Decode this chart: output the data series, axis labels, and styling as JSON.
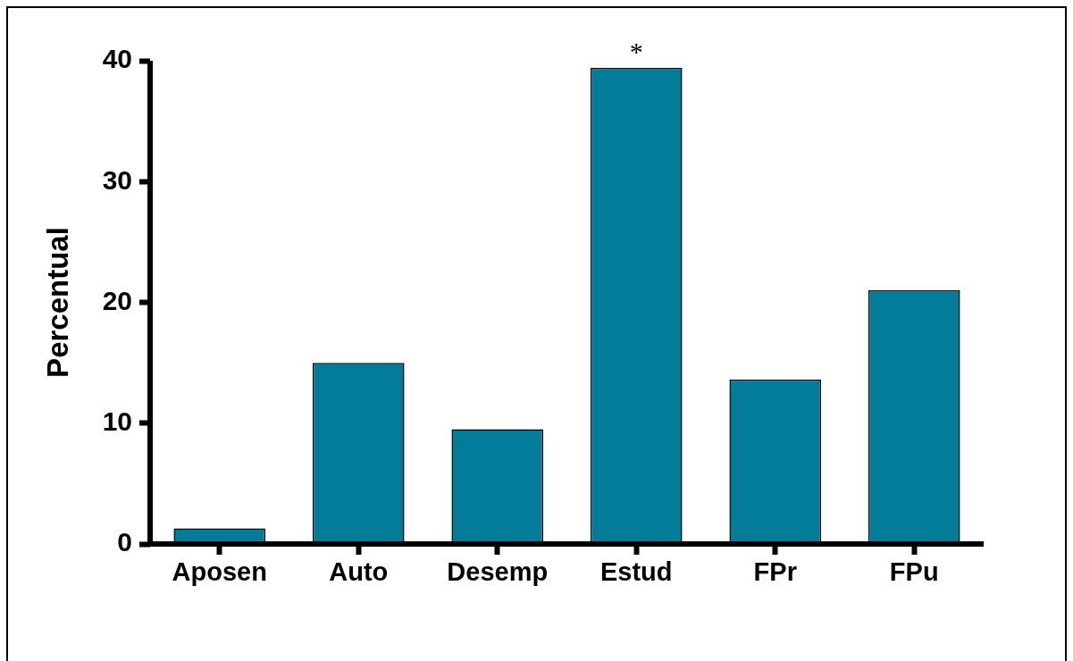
{
  "chart_data": {
    "type": "bar",
    "ylabel": "Percentual",
    "categories": [
      "Aposen",
      "Auto",
      "Desemp",
      "Estud",
      "FPr",
      "FPu"
    ],
    "values": [
      1.3,
      15.0,
      9.5,
      39.4,
      13.6,
      21.0
    ],
    "color": "#027c99",
    "ylim": [
      0,
      40
    ],
    "yticks": [
      0,
      10,
      20,
      30,
      40
    ],
    "annotations": [
      {
        "text": "*",
        "x": "Estud",
        "y": 39.4
      }
    ]
  }
}
